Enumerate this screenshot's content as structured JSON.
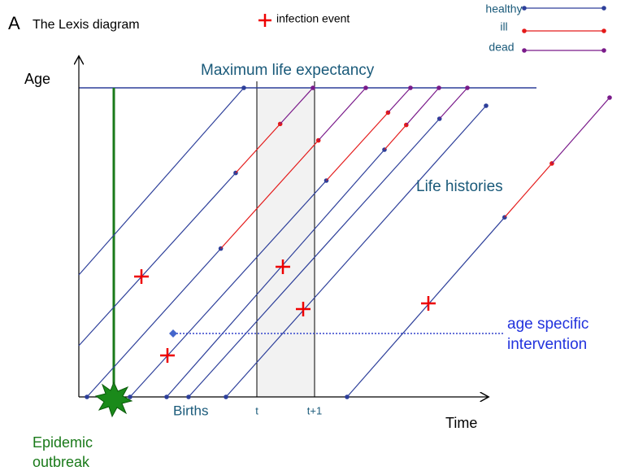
{
  "panel_letter": "A",
  "title": "The Lexis diagram",
  "legend": {
    "infection": "infection event",
    "states": [
      "healthy",
      "ill",
      "dead"
    ]
  },
  "axes": {
    "y_label": "Age",
    "x_label": "Time",
    "t": "t",
    "t_plus_1": "t+1"
  },
  "annotations": {
    "max_life": "Maximum life expectancy",
    "life_histories": "Life histories",
    "intervention": [
      "age specific",
      "intervention"
    ],
    "births": "Births",
    "outbreak": [
      "Epidemic",
      "outbreak"
    ]
  }
}
